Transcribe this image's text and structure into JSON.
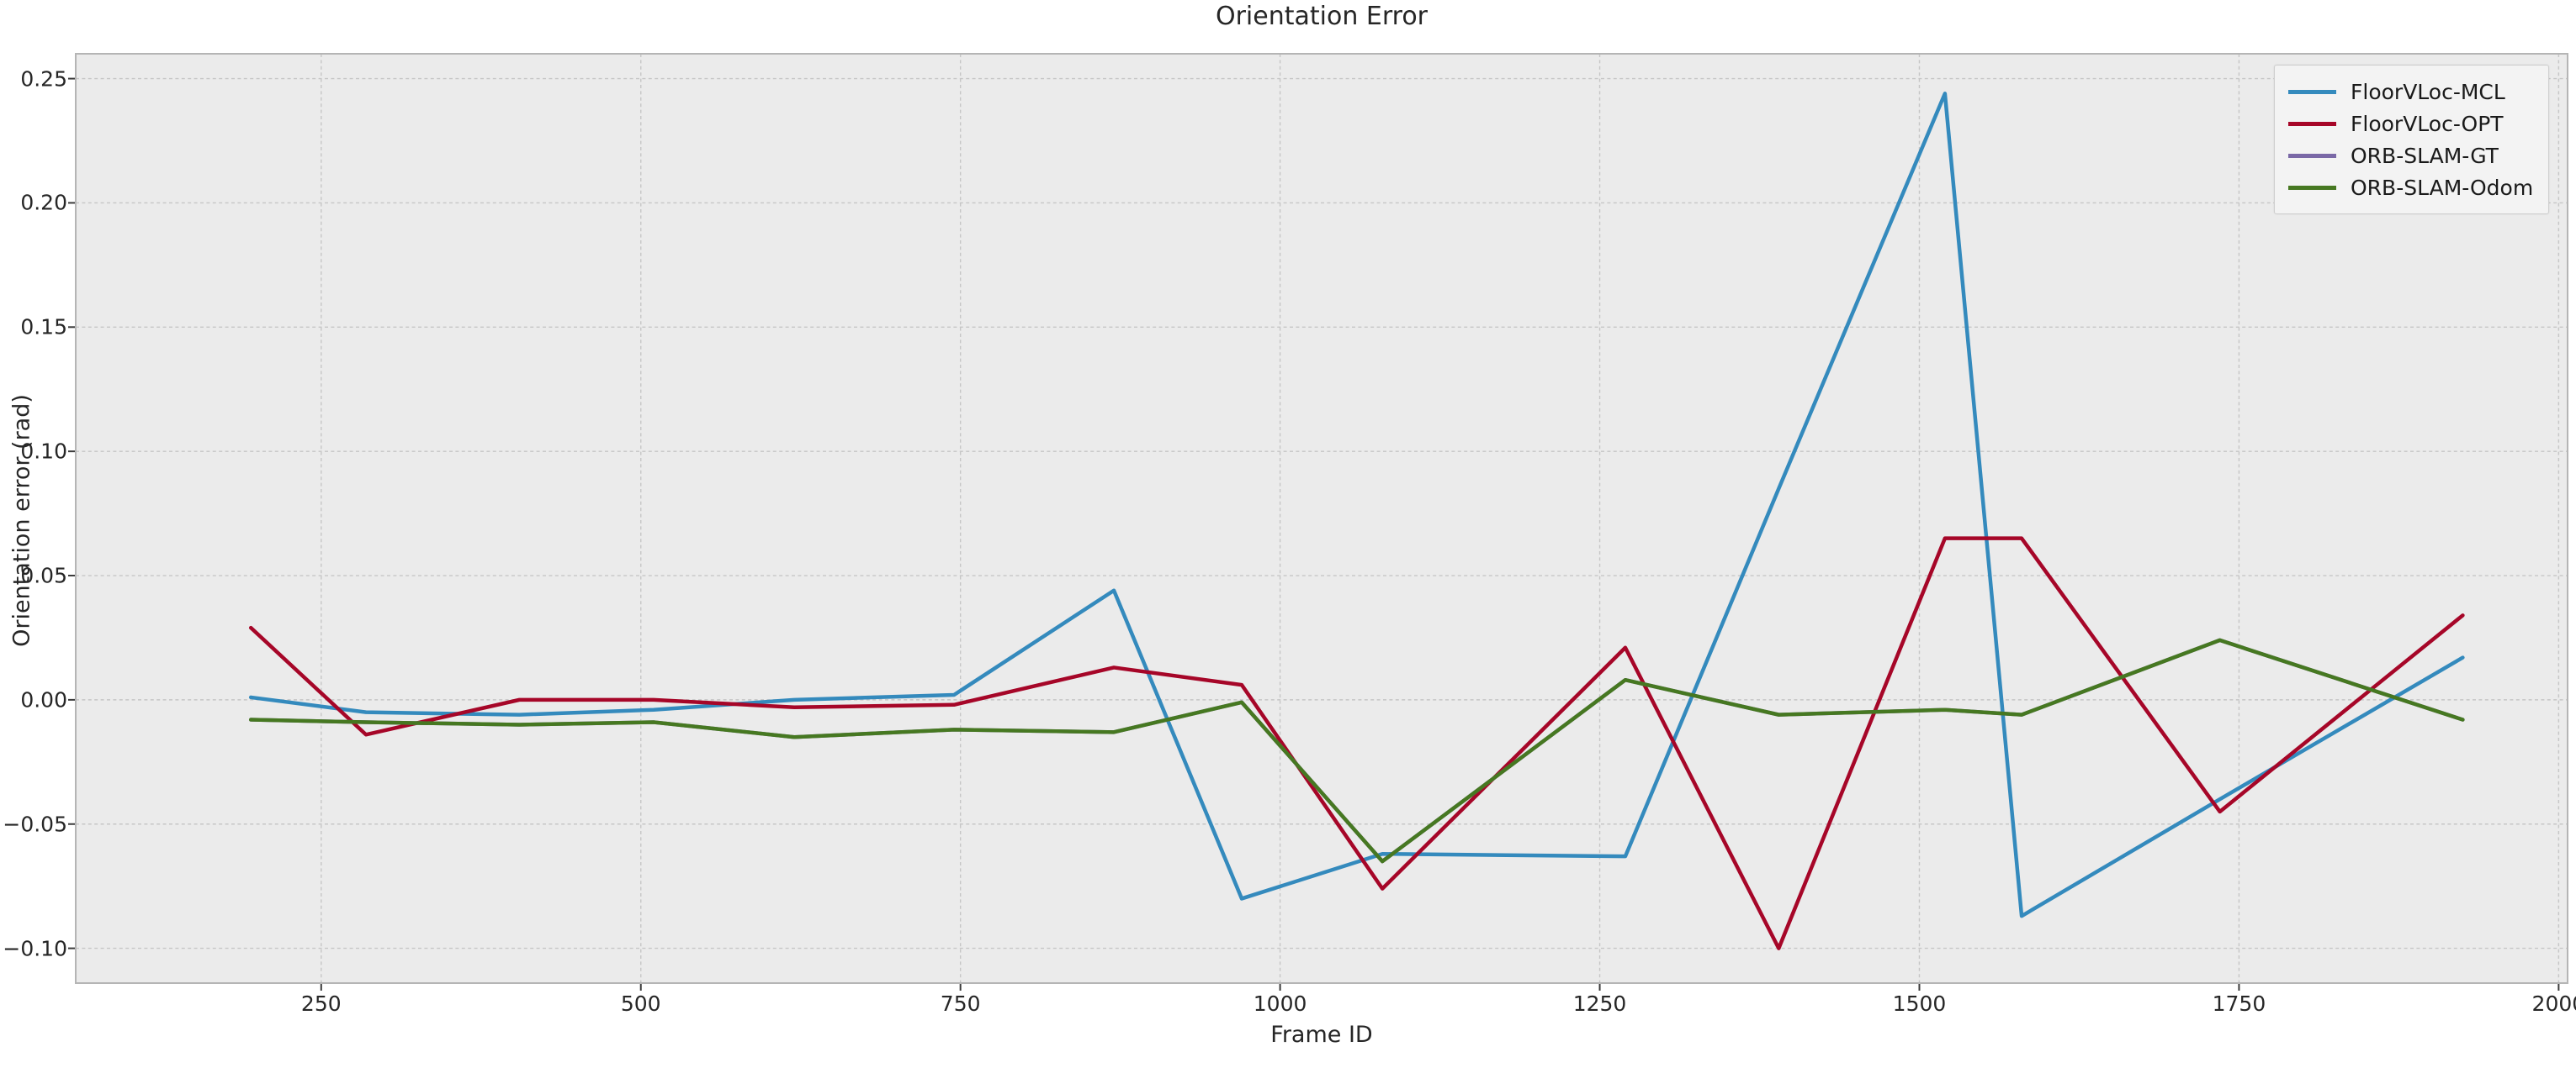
{
  "figure": {
    "title": "Orientation Error",
    "background_color": "#ffffff",
    "axes_background_color": "#ebebeb",
    "grid_color": "#c6c6c6",
    "spine_color": "#b5b5b5",
    "tick_mark_color": "#3a3a3a",
    "text_color": "#262626"
  },
  "chart_data": {
    "type": "line",
    "title": "Orientation Error",
    "xlabel": "Frame ID",
    "ylabel": "Orientation error (rad)",
    "xlim": [
      58,
      2007
    ],
    "ylim": [
      -0.114,
      0.26
    ],
    "grid": "on",
    "grid_style": "dashed",
    "legend_position": "upper right",
    "x_ticks": [
      250,
      500,
      750,
      1000,
      1250,
      1500,
      1750,
      2000
    ],
    "y_ticks": [
      0.25,
      0.2,
      0.15,
      0.1,
      0.05,
      0.0,
      -0.05,
      -0.1
    ],
    "x": [
      195,
      285,
      405,
      510,
      620,
      745,
      870,
      970,
      1080,
      1270,
      1390,
      1520,
      1580,
      1735,
      1925
    ],
    "series": [
      {
        "name": "FloorVLoc-MCL",
        "color": "#348ABD",
        "values": [
          0.001,
          -0.005,
          -0.006,
          -0.004,
          0.0,
          0.002,
          0.044,
          -0.08,
          -0.062,
          -0.063,
          0.085,
          0.244,
          -0.087,
          -0.04,
          0.017
        ]
      },
      {
        "name": "FloorVLoc-OPT",
        "color": "#A60628",
        "values": [
          0.029,
          -0.014,
          0.0,
          0.0,
          -0.003,
          -0.002,
          0.013,
          0.006,
          -0.076,
          0.021,
          -0.1,
          0.065,
          0.065,
          -0.045,
          0.034
        ]
      },
      {
        "name": "ORB-SLAM-GT",
        "color": "#7A68A6",
        "values": [
          -0.008,
          -0.009,
          -0.01,
          -0.009,
          -0.015,
          -0.012,
          -0.013,
          -0.001,
          -0.065,
          0.008,
          -0.006,
          -0.004,
          -0.006,
          0.024,
          -0.008
        ]
      },
      {
        "name": "ORB-SLAM-Odom",
        "color": "#467821",
        "values": [
          -0.008,
          -0.009,
          -0.01,
          -0.009,
          -0.015,
          -0.012,
          -0.013,
          -0.001,
          -0.065,
          0.008,
          -0.006,
          -0.004,
          -0.006,
          0.024,
          -0.008
        ]
      }
    ]
  },
  "legend": {
    "entries": [
      {
        "label": "FloorVLoc-MCL"
      },
      {
        "label": "FloorVLoc-OPT"
      },
      {
        "label": "ORB-SLAM-GT"
      },
      {
        "label": "ORB-SLAM-Odom"
      }
    ]
  }
}
